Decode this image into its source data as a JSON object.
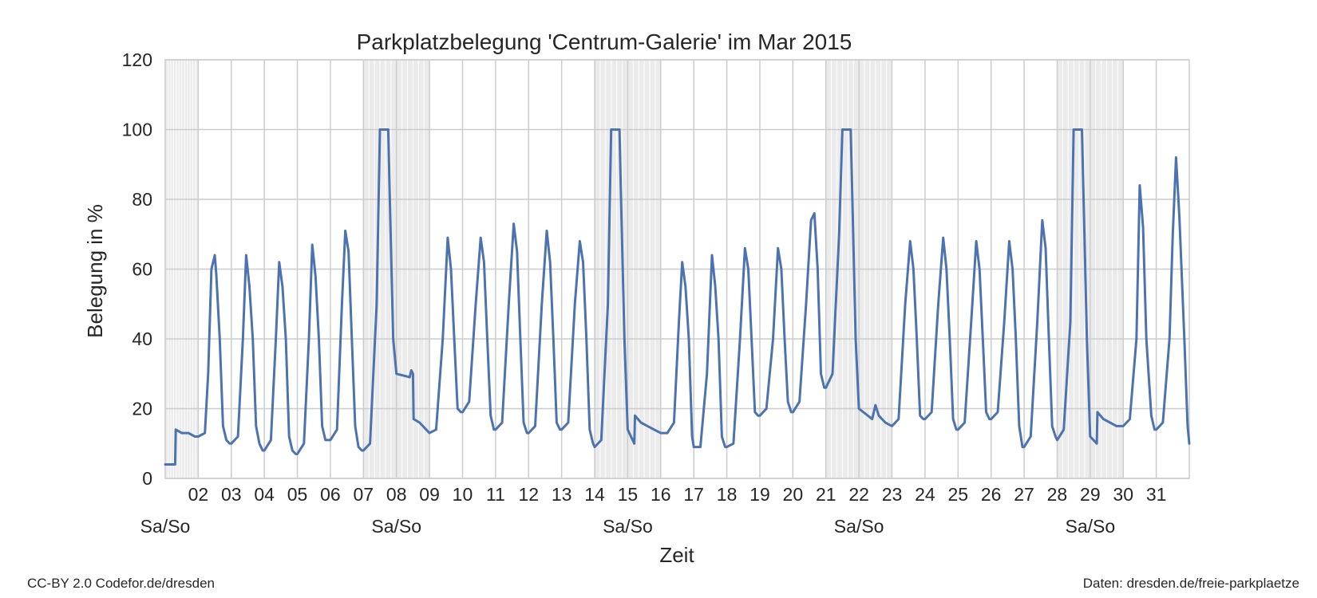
{
  "credits": {
    "left": "CC-BY 2.0 Codefor.de/dresden",
    "right": "Daten: dresden.de/freie-parkplaetze"
  },
  "chart_data": {
    "type": "line",
    "title": "Parkplatzbelegung 'Centrum-Galerie' im Mar 2015",
    "xlabel": "Zeit",
    "ylabel": "Belegung in %",
    "xlim": [
      1,
      32
    ],
    "ylim": [
      0,
      120
    ],
    "yticks": [
      0,
      20,
      40,
      60,
      80,
      100,
      120
    ],
    "xticks": [
      {
        "day": 2,
        "label": "02"
      },
      {
        "day": 3,
        "label": "03"
      },
      {
        "day": 4,
        "label": "04"
      },
      {
        "day": 5,
        "label": "05"
      },
      {
        "day": 6,
        "label": "06"
      },
      {
        "day": 7,
        "label": "07"
      },
      {
        "day": 8,
        "label": "08"
      },
      {
        "day": 9,
        "label": "09"
      },
      {
        "day": 10,
        "label": "10"
      },
      {
        "day": 11,
        "label": "11"
      },
      {
        "day": 12,
        "label": "12"
      },
      {
        "day": 13,
        "label": "13"
      },
      {
        "day": 14,
        "label": "14"
      },
      {
        "day": 15,
        "label": "15"
      },
      {
        "day": 16,
        "label": "16"
      },
      {
        "day": 17,
        "label": "17"
      },
      {
        "day": 18,
        "label": "18"
      },
      {
        "day": 19,
        "label": "19"
      },
      {
        "day": 20,
        "label": "20"
      },
      {
        "day": 21,
        "label": "21"
      },
      {
        "day": 22,
        "label": "22"
      },
      {
        "day": 23,
        "label": "23"
      },
      {
        "day": 24,
        "label": "24"
      },
      {
        "day": 25,
        "label": "25"
      },
      {
        "day": 26,
        "label": "26"
      },
      {
        "day": 27,
        "label": "27"
      },
      {
        "day": 28,
        "label": "28"
      },
      {
        "day": 29,
        "label": "29"
      },
      {
        "day": 30,
        "label": "30"
      },
      {
        "day": 31,
        "label": "31"
      }
    ],
    "weekend_label": "Sa/So",
    "weekend_label_days": [
      1,
      8,
      15,
      22,
      29
    ],
    "weekends": [
      [
        1,
        2
      ],
      [
        7,
        9
      ],
      [
        14,
        16
      ],
      [
        21,
        23
      ],
      [
        28,
        30
      ]
    ],
    "grid": true,
    "line_color": "#4c72b0",
    "weekend_shade_color": "#ebebeb",
    "series": [
      {
        "x": [
          1.0,
          1.3,
          1.32,
          1.5,
          1.7,
          1.9,
          2.0,
          2.2,
          2.3,
          2.4,
          2.5,
          2.55,
          2.65,
          2.75,
          2.85,
          2.95,
          3.0,
          3.2,
          3.35,
          3.45,
          3.55,
          3.65,
          3.75,
          3.85,
          3.95,
          4.0,
          4.2,
          4.35,
          4.45,
          4.55,
          4.65,
          4.75,
          4.85,
          4.95,
          5.0,
          5.2,
          5.35,
          5.45,
          5.55,
          5.65,
          5.75,
          5.85,
          5.95,
          6.0,
          6.2,
          6.35,
          6.45,
          6.55,
          6.65,
          6.75,
          6.85,
          6.95,
          7.0,
          7.2,
          7.4,
          7.5,
          7.55,
          7.75,
          7.8,
          7.9,
          8.0,
          8.4,
          8.45,
          8.5,
          8.52,
          8.7,
          8.9,
          9.0,
          9.2,
          9.4,
          9.55,
          9.65,
          9.75,
          9.85,
          9.95,
          10.0,
          10.2,
          10.4,
          10.55,
          10.65,
          10.75,
          10.85,
          10.95,
          11.0,
          11.2,
          11.4,
          11.55,
          11.65,
          11.75,
          11.85,
          11.95,
          12.0,
          12.2,
          12.4,
          12.55,
          12.65,
          12.75,
          12.85,
          12.95,
          13.0,
          13.2,
          13.4,
          13.55,
          13.65,
          13.75,
          13.85,
          13.95,
          14.0,
          14.2,
          14.4,
          14.5,
          14.55,
          14.75,
          14.8,
          14.9,
          15.0,
          15.2,
          15.22,
          15.4,
          15.6,
          15.8,
          16.0,
          16.2,
          16.4,
          16.55,
          16.65,
          16.75,
          16.85,
          16.95,
          17.0,
          17.2,
          17.4,
          17.55,
          17.65,
          17.75,
          17.85,
          17.95,
          18.0,
          18.2,
          18.4,
          18.55,
          18.65,
          18.75,
          18.85,
          18.95,
          19.0,
          19.2,
          19.4,
          19.55,
          19.65,
          19.75,
          19.85,
          19.95,
          20.0,
          20.2,
          20.4,
          20.55,
          20.65,
          20.75,
          20.85,
          20.95,
          21.0,
          21.2,
          21.4,
          21.5,
          21.55,
          21.75,
          21.8,
          21.9,
          22.0,
          22.4,
          22.5,
          22.6,
          22.8,
          23.0,
          23.2,
          23.4,
          23.55,
          23.65,
          23.75,
          23.85,
          23.95,
          24.0,
          24.2,
          24.4,
          24.55,
          24.65,
          24.75,
          24.85,
          24.95,
          25.0,
          25.2,
          25.4,
          25.55,
          25.65,
          25.75,
          25.85,
          25.95,
          26.0,
          26.2,
          26.4,
          26.55,
          26.65,
          26.75,
          26.85,
          26.95,
          27.0,
          27.2,
          27.4,
          27.55,
          27.65,
          27.75,
          27.85,
          27.95,
          28.0,
          28.2,
          28.4,
          28.5,
          28.55,
          28.75,
          28.8,
          28.9,
          29.0,
          29.2,
          29.22,
          29.4,
          29.6,
          29.8,
          30.0,
          30.2,
          30.4,
          30.5,
          30.6,
          30.7,
          30.85,
          30.95,
          31.0,
          31.2,
          31.4,
          31.5,
          31.6,
          31.7,
          31.85,
          31.95,
          32.0
        ],
        "y": [
          4,
          4,
          14,
          13,
          13,
          12,
          12,
          13,
          30,
          60,
          64,
          58,
          40,
          15,
          11,
          10,
          10,
          12,
          40,
          64,
          55,
          40,
          15,
          10,
          8,
          8,
          11,
          40,
          62,
          55,
          40,
          12,
          8,
          7,
          7,
          10,
          40,
          67,
          58,
          40,
          15,
          11,
          11,
          11,
          14,
          50,
          71,
          65,
          40,
          15,
          9,
          8,
          8,
          10,
          50,
          100,
          100,
          100,
          80,
          40,
          30,
          29,
          31,
          30,
          17,
          16,
          14,
          13,
          14,
          40,
          69,
          60,
          40,
          20,
          19,
          19,
          22,
          50,
          69,
          62,
          40,
          18,
          14,
          14,
          16,
          50,
          73,
          65,
          40,
          16,
          13,
          13,
          15,
          50,
          71,
          62,
          40,
          16,
          14,
          14,
          16,
          50,
          68,
          62,
          40,
          14,
          10,
          9,
          11,
          50,
          100,
          100,
          100,
          80,
          40,
          14,
          10,
          18,
          16,
          15,
          14,
          13,
          13,
          16,
          45,
          62,
          55,
          40,
          12,
          9,
          9,
          30,
          64,
          55,
          40,
          12,
          9,
          9,
          10,
          40,
          66,
          60,
          40,
          19,
          18,
          18,
          20,
          40,
          66,
          60,
          40,
          22,
          19,
          19,
          22,
          50,
          74,
          76,
          60,
          30,
          26,
          26,
          30,
          70,
          100,
          100,
          100,
          80,
          40,
          20,
          17,
          21,
          18,
          16,
          15,
          17,
          50,
          68,
          60,
          40,
          18,
          17,
          17,
          19,
          50,
          69,
          60,
          40,
          17,
          14,
          14,
          16,
          45,
          68,
          60,
          40,
          19,
          17,
          17,
          19,
          45,
          68,
          60,
          40,
          15,
          9,
          9,
          12,
          45,
          74,
          66,
          40,
          15,
          12,
          11,
          14,
          45,
          100,
          100,
          100,
          80,
          40,
          12,
          10,
          19,
          17,
          16,
          15,
          15,
          17,
          40,
          84,
          72,
          40,
          18,
          14,
          14,
          16,
          40,
          70,
          92,
          75,
          40,
          15,
          10
        ]
      }
    ]
  }
}
